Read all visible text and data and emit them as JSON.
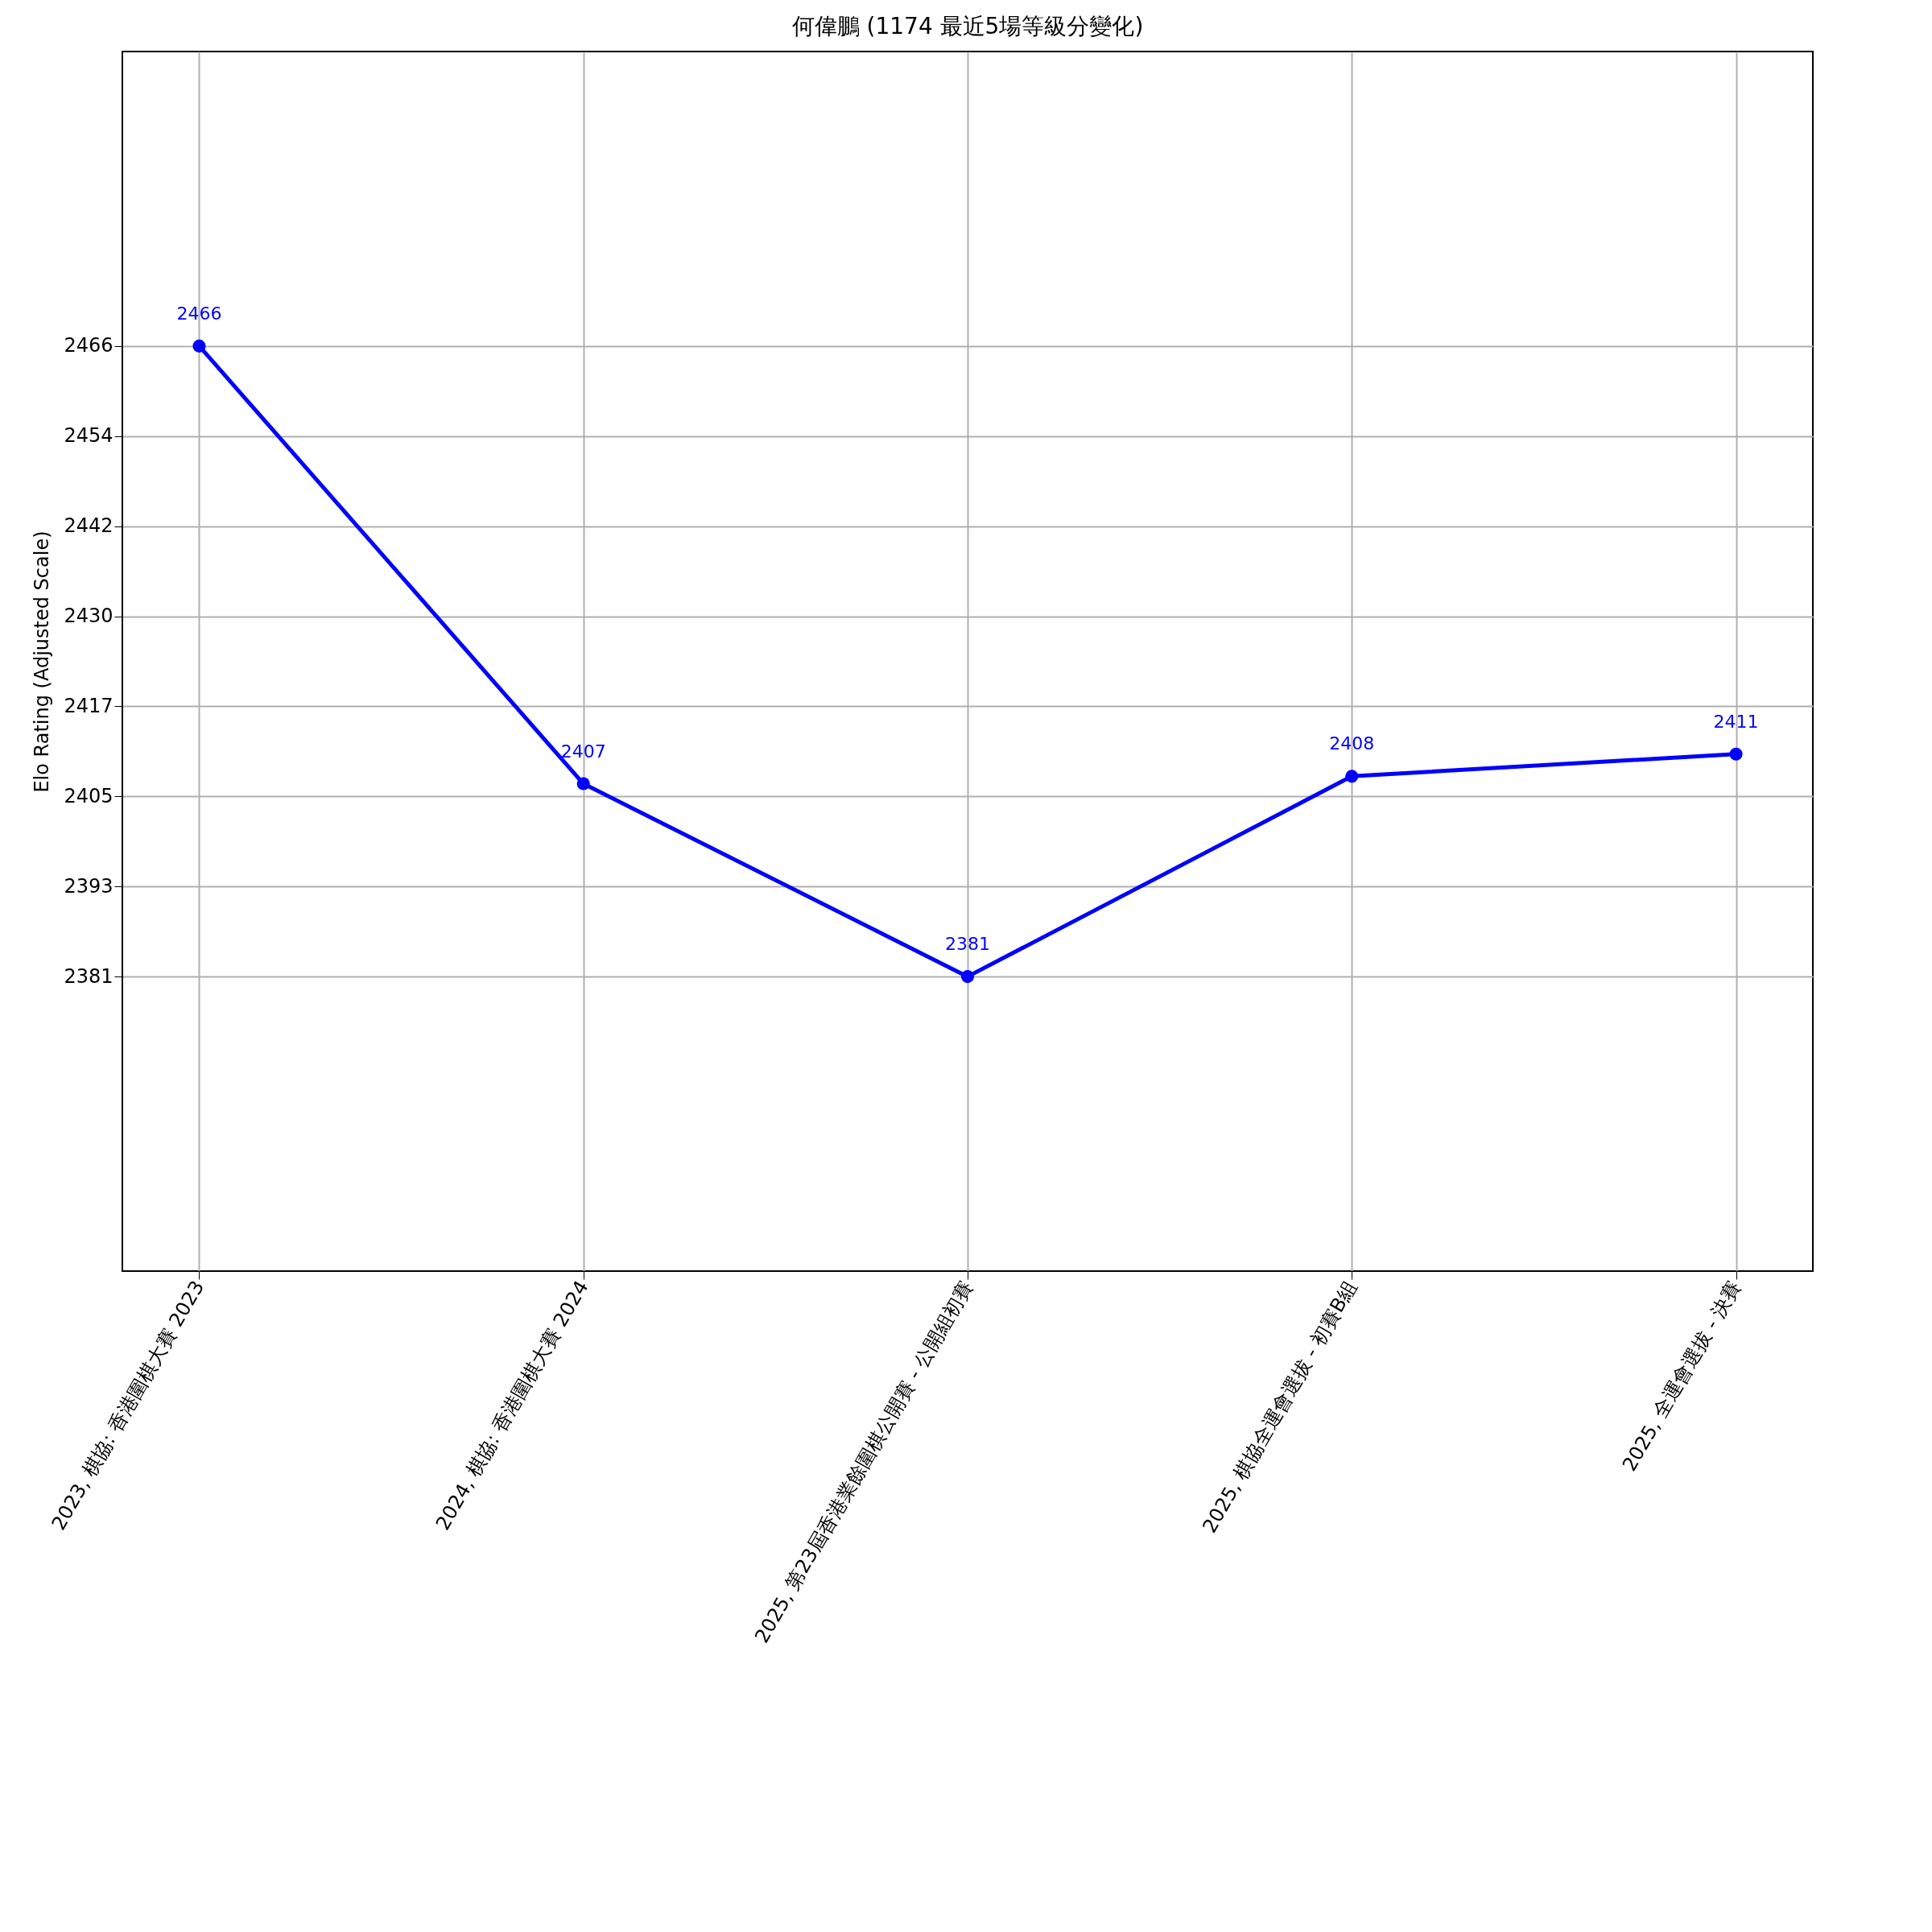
{
  "chart_data": {
    "type": "line",
    "title": "何偉鵬 (1174 最近5場等級分變化)",
    "ylabel": "Elo Rating (Adjusted Scale)",
    "categories": [
      "2023, 棋協: 香港圍棋大賽 2023",
      "2024, 棋協: 香港圍棋大賽 2024",
      "2025, 第23屆香港業餘圍棋公開賽 - 公開組初賽",
      "2025, 棋協全運會選拔 - 初賽B組",
      "2025, 全運會選拔 - 決賽"
    ],
    "series": [
      {
        "color": "#0000ff",
        "values": [
          2466,
          2407,
          2381,
          2408,
          2411
        ]
      }
    ],
    "ylim": [
      2341.3,
      2505.7
    ],
    "yticks": [
      2381,
      {
        "value": 2393.14,
        "label": "2393"
      },
      {
        "value": 2405.29,
        "label": "2405"
      },
      {
        "value": 2417.43,
        "label": "2417"
      },
      {
        "value": 2429.57,
        "label": "2430"
      },
      {
        "value": 2441.71,
        "label": "2442"
      },
      {
        "value": 2453.86,
        "label": "2454"
      },
      2466
    ],
    "grid": true,
    "marker": "circle",
    "line_style": "solid",
    "data_labels": true
  }
}
